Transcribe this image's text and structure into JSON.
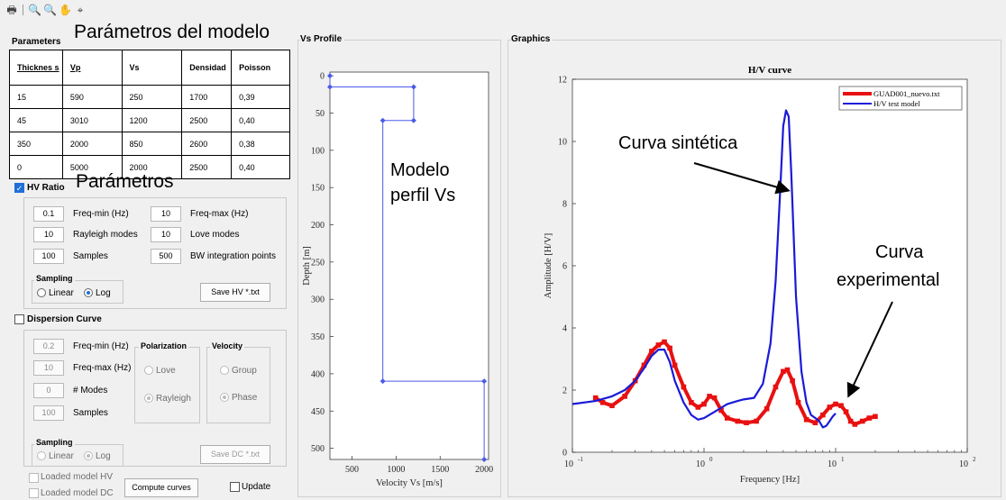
{
  "toolbar": {
    "icons": [
      "print-icon",
      "zoom-in-icon",
      "zoom-out-icon",
      "pan-hand-icon",
      "data-cursor-icon"
    ]
  },
  "parameters": {
    "title": "Parameters",
    "overlay": "Parámetros del modelo",
    "columns": [
      "Thicknes s",
      "Vp",
      "Vs",
      "Densidad",
      "Poisson"
    ],
    "rows": [
      [
        "15",
        "590",
        "250",
        "1700",
        "0,39"
      ],
      [
        "45",
        "3010",
        "1200",
        "2500",
        "0,40"
      ],
      [
        "350",
        "2000",
        "850",
        "2600",
        "0,38"
      ],
      [
        "0",
        "5000",
        "2000",
        "2500",
        "0,40"
      ]
    ]
  },
  "hv": {
    "title": "HV Ratio",
    "checked": true,
    "overlay": "Parámetros",
    "freq_min": "0.1",
    "freq_min_label": "Freq-min (Hz)",
    "freq_max": "10",
    "freq_max_label": "Freq-max (Hz)",
    "rayleigh_modes": "10",
    "rayleigh_modes_label": "Rayleigh modes",
    "love_modes": "10",
    "love_modes_label": "Love modes",
    "samples": "100",
    "samples_label": "Samples",
    "bw_points": "500",
    "bw_points_label": "BW integration points",
    "sampling_title": "Sampling",
    "sampling_linear": "Linear",
    "sampling_log": "Log",
    "sampling_selected": "Log",
    "save_label": "Save HV *.txt"
  },
  "dispersion": {
    "title": "Dispersion Curve",
    "checked": false,
    "freq_min": "0.2",
    "freq_min_label": "Freq-min (Hz)",
    "freq_max": "10",
    "freq_max_label": "Freq-max (Hz)",
    "modes": "0",
    "modes_label": "# Modes",
    "samples": "100",
    "samples_label": "Samples",
    "polarization_title": "Polarization",
    "love": "Love",
    "rayleigh": "Rayleigh",
    "polarization_selected": "Rayleigh",
    "velocity_title": "Velocity",
    "group": "Group",
    "phase": "Phase",
    "velocity_selected": "Phase",
    "sampling_title": "Sampling",
    "sampling_linear": "Linear",
    "sampling_log": "Log",
    "save_label": "Save DC *.txt"
  },
  "bottom": {
    "loaded_hv": "Loaded model HV",
    "loaded_dc": "Loaded model DC",
    "compute_label": "Compute curves",
    "update_label": "Update"
  },
  "vs_panel": {
    "title": "Vs Profile",
    "overlay_line1": "Modelo",
    "overlay_line2": "perfil Vs"
  },
  "graphics_panel": {
    "title": "Graphics",
    "overlay_synthetic": "Curva sintética",
    "overlay_experimental_1": "Curva",
    "overlay_experimental_2": "experimental"
  },
  "chart_data": [
    {
      "type": "line",
      "title": "",
      "xlabel": "Velocity Vs [m/s]",
      "ylabel": "Depth [m]",
      "xlim": [
        250,
        2050
      ],
      "ylim": [
        515,
        -5
      ],
      "xticks": [
        500,
        1000,
        1500,
        2000
      ],
      "yticks": [
        0,
        50,
        100,
        150,
        200,
        250,
        300,
        350,
        400,
        450,
        500
      ],
      "color": "#4a5ae8",
      "series": [
        {
          "x": [
            250,
            250,
            1200,
            1200,
            850,
            850,
            2000,
            2000
          ],
          "y": [
            0,
            15,
            15,
            60,
            60,
            410,
            410,
            515
          ]
        }
      ]
    },
    {
      "type": "line",
      "title": "H/V curve",
      "xlabel": "Frequency [Hz]",
      "ylabel": "Amplitude [H/V]",
      "xscale": "log",
      "xlim": [
        0.1,
        100
      ],
      "ylim": [
        0,
        12
      ],
      "xticks": [
        "10^-1",
        "10^0",
        "10^1",
        "10^2"
      ],
      "yticks": [
        0,
        2,
        4,
        6,
        8,
        10,
        12
      ],
      "legend_position": "top-right",
      "series": [
        {
          "name": "GUAD001_nuevo.txt",
          "color": "#e81010",
          "x": [
            0.15,
            0.17,
            0.2,
            0.25,
            0.3,
            0.35,
            0.4,
            0.45,
            0.5,
            0.55,
            0.6,
            0.7,
            0.8,
            0.9,
            1.0,
            1.1,
            1.2,
            1.35,
            1.5,
            1.8,
            2.1,
            2.5,
            3.0,
            3.5,
            4.0,
            4.3,
            4.7,
            5.2,
            6.0,
            7.0,
            8.0,
            9.0,
            10.0,
            11.0,
            12.0,
            13.0,
            14.0,
            16.0,
            18.0,
            20.0
          ],
          "y": [
            1.75,
            1.6,
            1.5,
            1.8,
            2.3,
            2.8,
            3.25,
            3.45,
            3.55,
            3.35,
            2.8,
            2.1,
            1.6,
            1.45,
            1.55,
            1.8,
            1.75,
            1.35,
            1.1,
            1.0,
            0.95,
            1.0,
            1.4,
            2.1,
            2.6,
            2.65,
            2.3,
            1.6,
            1.05,
            0.95,
            1.2,
            1.45,
            1.55,
            1.5,
            1.3,
            1.0,
            0.9,
            1.0,
            1.1,
            1.15
          ]
        },
        {
          "name": "H/V test model",
          "color": "#1a1ad8",
          "x": [
            0.1,
            0.15,
            0.2,
            0.25,
            0.3,
            0.35,
            0.4,
            0.45,
            0.5,
            0.55,
            0.6,
            0.7,
            0.8,
            0.9,
            1.0,
            1.2,
            1.5,
            1.8,
            2.0,
            2.4,
            2.8,
            3.2,
            3.5,
            3.8,
            4.0,
            4.2,
            4.4,
            4.6,
            5.0,
            5.5,
            6.0,
            6.5,
            7.0,
            7.5,
            8.0,
            8.5,
            9.0,
            9.5,
            10.0
          ],
          "y": [
            1.55,
            1.65,
            1.8,
            2.0,
            2.3,
            2.7,
            3.1,
            3.3,
            3.3,
            2.9,
            2.3,
            1.6,
            1.2,
            1.05,
            1.1,
            1.3,
            1.55,
            1.65,
            1.7,
            1.75,
            2.2,
            3.5,
            5.5,
            8.5,
            10.5,
            11.0,
            10.8,
            9.0,
            5.0,
            2.6,
            1.6,
            1.2,
            1.1,
            1.0,
            0.8,
            0.85,
            1.0,
            1.15,
            1.25
          ]
        }
      ]
    }
  ]
}
